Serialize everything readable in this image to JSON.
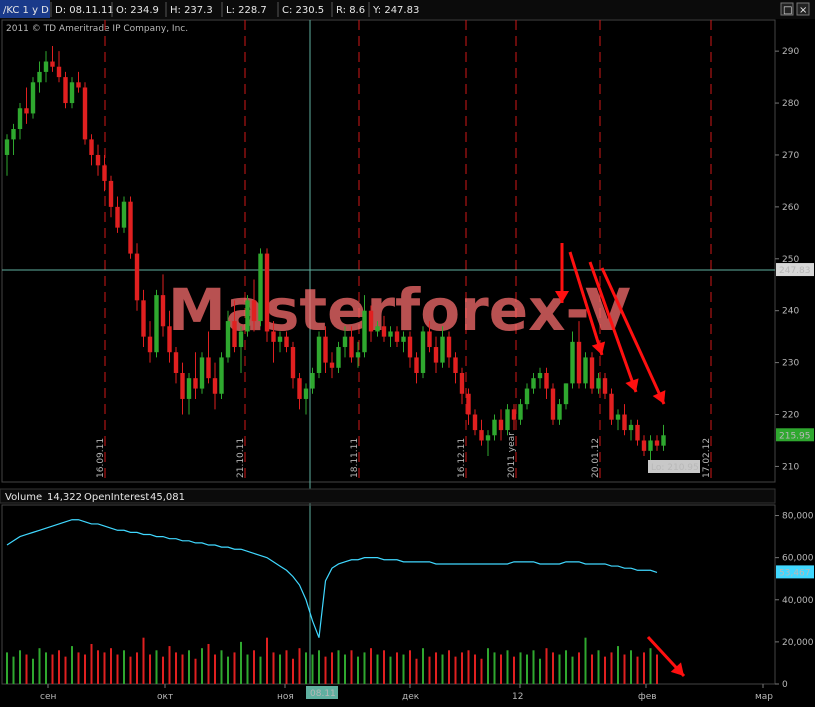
{
  "header": {
    "symbol": "/KC 1 y D",
    "date": "D: 08.11.11",
    "open": "O: 234.9",
    "high": "H: 237.3",
    "low": "L: 228.7",
    "close": "C: 230.5",
    "range": "R: 8.6",
    "y": "Y: 247.83",
    "copyright": "2011 © TD Ameritrade IP Company, Inc."
  },
  "watermark": "Masterforex-V",
  "price_panel": {
    "y_ticks": [
      "290",
      "280",
      "270",
      "260",
      "250",
      "240",
      "230",
      "220",
      "210"
    ],
    "current_price_tag": "247.83",
    "last_price_tag": "215.95",
    "low_tag": "Lo: 210.95",
    "date_markers": [
      "16.09.11",
      "21.10.11",
      "18.11.11",
      "16.12.11",
      "2011 year",
      "20.01.12",
      "17.02.12"
    ]
  },
  "volume_panel": {
    "volume_label": "Volume",
    "volume_value": "14,322",
    "oi_label": "OpenInterest",
    "oi_value": "45,081",
    "y_ticks": [
      "80,000",
      "60,000",
      "40,000",
      "20,000",
      "0"
    ],
    "oi_last_tag": "53,467"
  },
  "x_axis": {
    "labels": [
      "сен",
      "окт",
      "ноя",
      "дек",
      "12",
      "фев",
      "мар"
    ],
    "cursor_tag": "08.11"
  },
  "colors": {
    "up": "#2fa82f",
    "down": "#e02020",
    "oi": "#40d8ff",
    "grid_red": "#d01818",
    "cursor": "#5fb0a0"
  },
  "chart_data": {
    "type": "candlestick",
    "instrument": "/KC",
    "ylim": [
      207,
      296
    ],
    "hline": 247.83,
    "low_marker": 210.95,
    "candles": [
      {
        "o": 270,
        "h": 274,
        "l": 266,
        "c": 273
      },
      {
        "o": 273,
        "h": 276,
        "l": 270,
        "c": 275
      },
      {
        "o": 275,
        "h": 280,
        "l": 273,
        "c": 279
      },
      {
        "o": 279,
        "h": 283,
        "l": 276,
        "c": 278
      },
      {
        "o": 278,
        "h": 285,
        "l": 277,
        "c": 284
      },
      {
        "o": 284,
        "h": 288,
        "l": 282,
        "c": 286
      },
      {
        "o": 286,
        "h": 290,
        "l": 284,
        "c": 288
      },
      {
        "o": 288,
        "h": 291,
        "l": 286,
        "c": 287
      },
      {
        "o": 287,
        "h": 290,
        "l": 284,
        "c": 285
      },
      {
        "o": 285,
        "h": 286,
        "l": 279,
        "c": 280
      },
      {
        "o": 280,
        "h": 285,
        "l": 279,
        "c": 284
      },
      {
        "o": 284,
        "h": 286,
        "l": 282,
        "c": 283
      },
      {
        "o": 283,
        "h": 284,
        "l": 272,
        "c": 273
      },
      {
        "o": 273,
        "h": 274,
        "l": 268,
        "c": 270
      },
      {
        "o": 270,
        "h": 272,
        "l": 266,
        "c": 268
      },
      {
        "o": 268,
        "h": 270,
        "l": 263,
        "c": 265
      },
      {
        "o": 265,
        "h": 266,
        "l": 258,
        "c": 260
      },
      {
        "o": 260,
        "h": 262,
        "l": 255,
        "c": 256
      },
      {
        "o": 256,
        "h": 262,
        "l": 255,
        "c": 261
      },
      {
        "o": 261,
        "h": 262,
        "l": 250,
        "c": 251
      },
      {
        "o": 251,
        "h": 253,
        "l": 240,
        "c": 242
      },
      {
        "o": 242,
        "h": 244,
        "l": 233,
        "c": 235
      },
      {
        "o": 235,
        "h": 238,
        "l": 230,
        "c": 232
      },
      {
        "o": 232,
        "h": 244,
        "l": 231,
        "c": 243
      },
      {
        "o": 243,
        "h": 247,
        "l": 235,
        "c": 237
      },
      {
        "o": 237,
        "h": 240,
        "l": 230,
        "c": 232
      },
      {
        "o": 232,
        "h": 233,
        "l": 226,
        "c": 228
      },
      {
        "o": 228,
        "h": 230,
        "l": 220,
        "c": 223
      },
      {
        "o": 223,
        "h": 228,
        "l": 220,
        "c": 227
      },
      {
        "o": 227,
        "h": 232,
        "l": 223,
        "c": 225
      },
      {
        "o": 225,
        "h": 232,
        "l": 224,
        "c": 231
      },
      {
        "o": 231,
        "h": 236,
        "l": 226,
        "c": 227
      },
      {
        "o": 227,
        "h": 230,
        "l": 221,
        "c": 224
      },
      {
        "o": 224,
        "h": 232,
        "l": 223,
        "c": 231
      },
      {
        "o": 231,
        "h": 240,
        "l": 230,
        "c": 238
      },
      {
        "o": 238,
        "h": 242,
        "l": 232,
        "c": 233
      },
      {
        "o": 233,
        "h": 237,
        "l": 228,
        "c": 236
      },
      {
        "o": 236,
        "h": 243,
        "l": 235,
        "c": 242
      },
      {
        "o": 242,
        "h": 246,
        "l": 236,
        "c": 238
      },
      {
        "o": 238,
        "h": 252,
        "l": 237,
        "c": 251
      },
      {
        "o": 251,
        "h": 252,
        "l": 234,
        "c": 236
      },
      {
        "o": 236,
        "h": 238,
        "l": 230,
        "c": 234
      },
      {
        "o": 234,
        "h": 236,
        "l": 232,
        "c": 235
      },
      {
        "o": 235,
        "h": 236,
        "l": 232,
        "c": 233
      },
      {
        "o": 233,
        "h": 234,
        "l": 225,
        "c": 227
      },
      {
        "o": 227,
        "h": 228,
        "l": 221,
        "c": 223
      },
      {
        "o": 223,
        "h": 226,
        "l": 220,
        "c": 225
      },
      {
        "o": 225,
        "h": 229,
        "l": 224,
        "c": 228
      },
      {
        "o": 228,
        "h": 236,
        "l": 227,
        "c": 235
      },
      {
        "o": 235,
        "h": 237,
        "l": 228,
        "c": 230
      },
      {
        "o": 230,
        "h": 232,
        "l": 227,
        "c": 229
      },
      {
        "o": 229,
        "h": 234,
        "l": 228,
        "c": 233
      },
      {
        "o": 233,
        "h": 237,
        "l": 231,
        "c": 235
      },
      {
        "o": 235,
        "h": 237,
        "l": 230,
        "c": 231
      },
      {
        "o": 231,
        "h": 234,
        "l": 229,
        "c": 232
      },
      {
        "o": 232,
        "h": 243,
        "l": 231,
        "c": 240
      },
      {
        "o": 240,
        "h": 241,
        "l": 234,
        "c": 236
      },
      {
        "o": 236,
        "h": 238,
        "l": 235,
        "c": 237
      },
      {
        "o": 237,
        "h": 239,
        "l": 234,
        "c": 235
      },
      {
        "o": 235,
        "h": 237,
        "l": 233,
        "c": 236
      },
      {
        "o": 236,
        "h": 237,
        "l": 233,
        "c": 234
      },
      {
        "o": 234,
        "h": 236,
        "l": 232,
        "c": 235
      },
      {
        "o": 235,
        "h": 236,
        "l": 229,
        "c": 231
      },
      {
        "o": 231,
        "h": 232,
        "l": 226,
        "c": 228
      },
      {
        "o": 228,
        "h": 237,
        "l": 227,
        "c": 236
      },
      {
        "o": 236,
        "h": 238,
        "l": 232,
        "c": 233
      },
      {
        "o": 233,
        "h": 235,
        "l": 228,
        "c": 230
      },
      {
        "o": 230,
        "h": 237,
        "l": 229,
        "c": 235
      },
      {
        "o": 235,
        "h": 236,
        "l": 229,
        "c": 231
      },
      {
        "o": 231,
        "h": 232,
        "l": 226,
        "c": 228
      },
      {
        "o": 228,
        "h": 229,
        "l": 222,
        "c": 224
      },
      {
        "o": 224,
        "h": 225,
        "l": 218,
        "c": 220
      },
      {
        "o": 220,
        "h": 221,
        "l": 216,
        "c": 217
      },
      {
        "o": 217,
        "h": 219,
        "l": 214,
        "c": 215
      },
      {
        "o": 215,
        "h": 217,
        "l": 212,
        "c": 216
      },
      {
        "o": 216,
        "h": 220,
        "l": 215,
        "c": 219
      },
      {
        "o": 219,
        "h": 221,
        "l": 215,
        "c": 217
      },
      {
        "o": 217,
        "h": 222,
        "l": 216,
        "c": 221
      },
      {
        "o": 221,
        "h": 222,
        "l": 217,
        "c": 219
      },
      {
        "o": 219,
        "h": 223,
        "l": 218,
        "c": 222
      },
      {
        "o": 222,
        "h": 226,
        "l": 221,
        "c": 225
      },
      {
        "o": 225,
        "h": 228,
        "l": 224,
        "c": 227
      },
      {
        "o": 227,
        "h": 229,
        "l": 225,
        "c": 228
      },
      {
        "o": 228,
        "h": 229,
        "l": 223,
        "c": 225
      },
      {
        "o": 225,
        "h": 226,
        "l": 218,
        "c": 219
      },
      {
        "o": 219,
        "h": 223,
        "l": 218,
        "c": 222
      },
      {
        "o": 222,
        "h": 226,
        "l": 221,
        "c": 226
      },
      {
        "o": 226,
        "h": 236,
        "l": 225,
        "c": 234
      },
      {
        "o": 234,
        "h": 238,
        "l": 225,
        "c": 226
      },
      {
        "o": 226,
        "h": 232,
        "l": 225,
        "c": 231
      },
      {
        "o": 231,
        "h": 232,
        "l": 224,
        "c": 225
      },
      {
        "o": 225,
        "h": 228,
        "l": 224,
        "c": 227
      },
      {
        "o": 227,
        "h": 228,
        "l": 223,
        "c": 224
      },
      {
        "o": 224,
        "h": 225,
        "l": 218,
        "c": 219
      },
      {
        "o": 219,
        "h": 221,
        "l": 217,
        "c": 220
      },
      {
        "o": 220,
        "h": 222,
        "l": 216,
        "c": 217
      },
      {
        "o": 217,
        "h": 219,
        "l": 215,
        "c": 218
      },
      {
        "o": 218,
        "h": 219,
        "l": 214,
        "c": 215
      },
      {
        "o": 215,
        "h": 216,
        "l": 212,
        "c": 213
      },
      {
        "o": 213,
        "h": 216,
        "l": 211,
        "c": 215
      },
      {
        "o": 215,
        "h": 216,
        "l": 213,
        "c": 214
      },
      {
        "o": 214,
        "h": 218,
        "l": 213,
        "c": 216
      }
    ],
    "volume": [
      15,
      13,
      16,
      14,
      12,
      17,
      15,
      14,
      16,
      13,
      18,
      15,
      14,
      19,
      16,
      15,
      17,
      14,
      16,
      13,
      15,
      22,
      14,
      16,
      13,
      18,
      15,
      14,
      16,
      12,
      17,
      19,
      14,
      16,
      13,
      15,
      20,
      14,
      16,
      13,
      22,
      15,
      14,
      16,
      12,
      17,
      15,
      14,
      16,
      13,
      15,
      16,
      14,
      16,
      13,
      15,
      17,
      14,
      16,
      13,
      15,
      14,
      16,
      12,
      17,
      13,
      15,
      14,
      16,
      13,
      15,
      16,
      14,
      12,
      17,
      15,
      14,
      16,
      13,
      15,
      14,
      16,
      12,
      17,
      15,
      14,
      16,
      13,
      15,
      22,
      14,
      16,
      13,
      15,
      18,
      14,
      16,
      13,
      15,
      17,
      14
    ],
    "open_interest": [
      66,
      68,
      70,
      71,
      72,
      73,
      74,
      75,
      76,
      77,
      78,
      78,
      77,
      76,
      76,
      75,
      74,
      73,
      73,
      72,
      72,
      71,
      71,
      70,
      70,
      69,
      69,
      68,
      68,
      67,
      67,
      66,
      66,
      65,
      65,
      64,
      64,
      63,
      62,
      61,
      60,
      58,
      56,
      54,
      51,
      47,
      40,
      30,
      22,
      49,
      55,
      57,
      58,
      59,
      59,
      60,
      60,
      60,
      59,
      59,
      59,
      58,
      58,
      58,
      58,
      58,
      57,
      57,
      57,
      57,
      57,
      57,
      57,
      57,
      57,
      57,
      57,
      57,
      58,
      58,
      58,
      58,
      57,
      57,
      57,
      57,
      58,
      58,
      58,
      57,
      57,
      57,
      57,
      56,
      56,
      55,
      55,
      54,
      54,
      54,
      53
    ],
    "oi_ylim": [
      0,
      85
    ]
  }
}
